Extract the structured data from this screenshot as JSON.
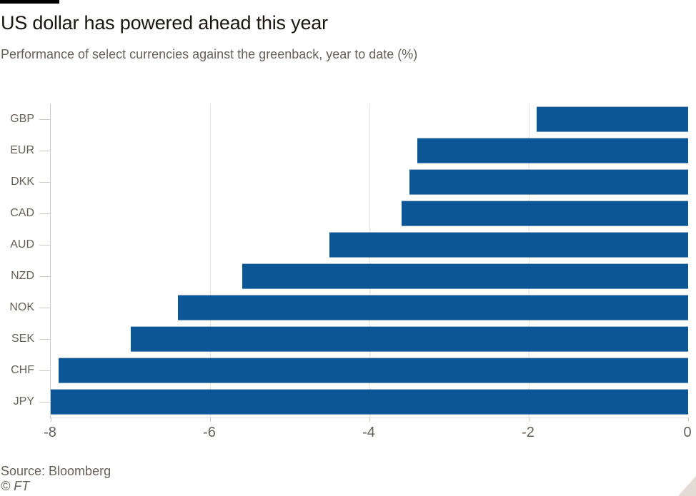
{
  "header": {
    "title": "US dollar has powered ahead this year",
    "subtitle": "Performance of select currencies against the greenback, year to date (%)"
  },
  "chart_data": {
    "type": "bar",
    "orientation": "horizontal",
    "title": "US dollar has powered ahead this year",
    "subtitle": "Performance of select currencies against the greenback, year to date (%)",
    "categories": [
      "GBP",
      "EUR",
      "DKK",
      "CAD",
      "AUD",
      "NZD",
      "NOK",
      "SEK",
      "CHF",
      "JPY"
    ],
    "values": [
      -1.9,
      -3.4,
      -3.5,
      -3.6,
      -4.5,
      -5.6,
      -6.4,
      -7.0,
      -7.9,
      -8.0
    ],
    "xlim": [
      -8,
      0
    ],
    "xticks": [
      -8,
      -6,
      -4,
      -2,
      0
    ],
    "xtick_labels": [
      "-8",
      "-6",
      "-4",
      "-2",
      "0"
    ],
    "xlabel": "",
    "ylabel": "",
    "grid": true,
    "legend": "none",
    "bar_color": "#0d5695"
  },
  "footer": {
    "source": "Source: Bloomberg",
    "copyright": "© FT"
  },
  "icons": {
    "resize_handle": "corner-triangle"
  },
  "colors": {
    "bar": "#0d5695",
    "title_text": "#181513",
    "muted_text": "#66605c",
    "gridline": "#e6e4e1",
    "axis_tick": "#cdc9c3",
    "motif": "#000000",
    "resize_handle": "#e2dcd4",
    "background": "#ffffff"
  }
}
